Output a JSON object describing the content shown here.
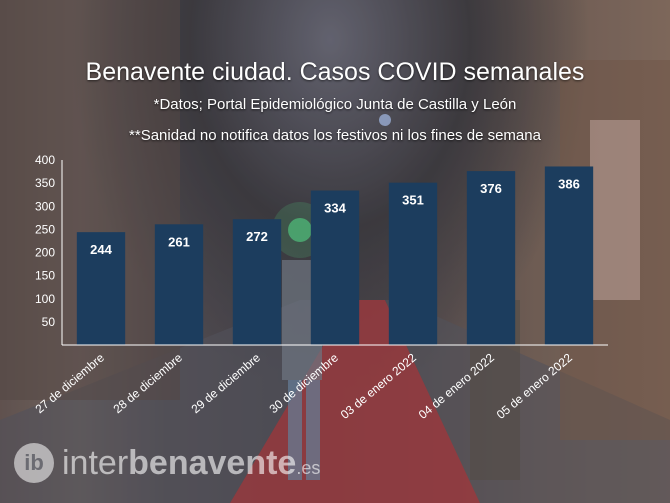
{
  "chart_data": {
    "type": "bar",
    "title": "Benavente ciudad. Casos COVID semanales",
    "subtitles": [
      "*Datos; Portal Epidemiológico Junta de Castilla y León",
      "**Sanidad no notifica datos los festivos ni los fines de semana"
    ],
    "categories": [
      "27 de diciembre",
      "28 de diciembre",
      "29 de diciembre",
      "30 de diciembre",
      "03 de enero 2022",
      "04 de enero 2022",
      "05 de enero 2022"
    ],
    "values": [
      244,
      261,
      272,
      334,
      351,
      376,
      386
    ],
    "data_labels": [
      "244",
      "261",
      "272",
      "334",
      "351",
      "376",
      "386"
    ],
    "ylim": [
      0,
      400
    ],
    "yticks": [
      "50",
      "100",
      "150",
      "200",
      "250",
      "300",
      "350",
      "400"
    ],
    "xlabel": "",
    "ylabel": "",
    "grid": false,
    "legend": "none",
    "colors": {
      "bar": "#1c3d5e",
      "label": "#ffffff",
      "axis": "#ffffff"
    }
  },
  "watermark": {
    "mark": "ib",
    "text_light": "inter",
    "text_bold": "benavente",
    "tld": ".es"
  }
}
